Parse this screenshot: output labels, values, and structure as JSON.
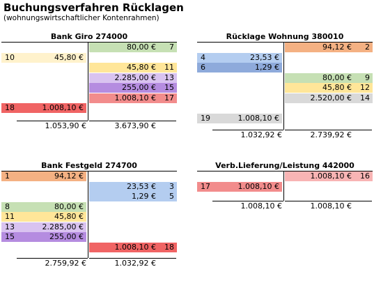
{
  "title": "Buchungsverfahren Rücklagen",
  "subtitle": "(wohnungswirtschaftlicher Kontenrahmen)",
  "colors": {
    "orange": "#f4b183",
    "light_yellow": "#fff2cc",
    "green": "#c6e0b4",
    "yellow": "#ffe699",
    "lavender": "#d9c3f0",
    "purple": "#b58ce0",
    "salmon": "#f28c8c",
    "red": "#f06464",
    "light_blue": "#b4cdf0",
    "blue": "#8eaadb",
    "gray": "#d9d9d9",
    "pink": "#f8b4b4"
  },
  "accounts": [
    {
      "title": "Bank Giro 274000",
      "debit": [
        {
          "row": 1,
          "num": "10",
          "amount": "45,80 €",
          "color": "#fff2cc"
        },
        {
          "row": 6,
          "num": "18",
          "amount": "1.008,10 €",
          "color": "#f06464"
        }
      ],
      "credit": [
        {
          "row": 0,
          "num": "7",
          "amount": "80,00 €",
          "color": "#c6e0b4"
        },
        {
          "row": 2,
          "num": "11",
          "amount": "45,80 €",
          "color": "#ffe699"
        },
        {
          "row": 3,
          "num": "13",
          "amount": "2.285,00 €",
          "color": "#d9c3f0"
        },
        {
          "row": 4,
          "num": "15",
          "amount": "255,00 €",
          "color": "#b58ce0"
        },
        {
          "row": 5,
          "num": "17",
          "amount": "1.008,10 €",
          "color": "#f28c8c"
        }
      ],
      "debit_total": "1.053,90 €",
      "credit_total": "3.673,90 €"
    },
    {
      "title": "Rücklage Wohnung 380010",
      "debit": [
        {
          "row": 1,
          "num": "4",
          "amount": "23,53 €",
          "color": "#b4cdf0"
        },
        {
          "row": 2,
          "num": "6",
          "amount": "1,29 €",
          "color": "#8eaadb"
        },
        {
          "row": 7,
          "num": "19",
          "amount": "1.008,10 €",
          "color": "#d9d9d9"
        }
      ],
      "credit": [
        {
          "row": 0,
          "num": "2",
          "amount": "94,12 €",
          "color": "#f4b183"
        },
        {
          "row": 3,
          "num": "9",
          "amount": "80,00 €",
          "color": "#c6e0b4"
        },
        {
          "row": 4,
          "num": "12",
          "amount": "45,80 €",
          "color": "#ffe699"
        },
        {
          "row": 5,
          "num": "14",
          "amount": "2.520,00 €",
          "color": "#d9d9d9"
        }
      ],
      "debit_total": "1.032,92 €",
      "credit_total": "2.739,92 €"
    },
    {
      "title": "Bank Festgeld 274700",
      "debit": [
        {
          "row": 0,
          "num": "1",
          "amount": "94,12 €",
          "color": "#f4b183"
        },
        {
          "row": 3,
          "num": "8",
          "amount": "80,00 €",
          "color": "#c6e0b4"
        },
        {
          "row": 4,
          "num": "11",
          "amount": "45,80 €",
          "color": "#ffe699"
        },
        {
          "row": 5,
          "num": "13",
          "amount": "2.285,00 €",
          "color": "#d9c3f0"
        },
        {
          "row": 6,
          "num": "15",
          "amount": "255,00 €",
          "color": "#b58ce0"
        }
      ],
      "credit": [
        {
          "row": 1,
          "num": "3",
          "amount": "23,53 €",
          "color": "#b4cdf0"
        },
        {
          "row": 2,
          "num": "5",
          "amount": "1,29 €",
          "color": "#b4cdf0"
        },
        {
          "row": 7,
          "num": "18",
          "amount": "1.008,10 €",
          "color": "#f06464"
        }
      ],
      "debit_total": "2.759,92 €",
      "credit_total": "1.032,92 €"
    },
    {
      "title": "Verb.Lieferung/Leistung 442000",
      "debit": [
        {
          "row": 1,
          "num": "17",
          "amount": "1.008,10 €",
          "color": "#f28c8c"
        }
      ],
      "credit": [
        {
          "row": 0,
          "num": "16",
          "amount": "1.008,10 €",
          "color": "#f8b4b4"
        }
      ],
      "debit_total": "1.008,10 €",
      "credit_total": "1.008,10 €"
    }
  ]
}
